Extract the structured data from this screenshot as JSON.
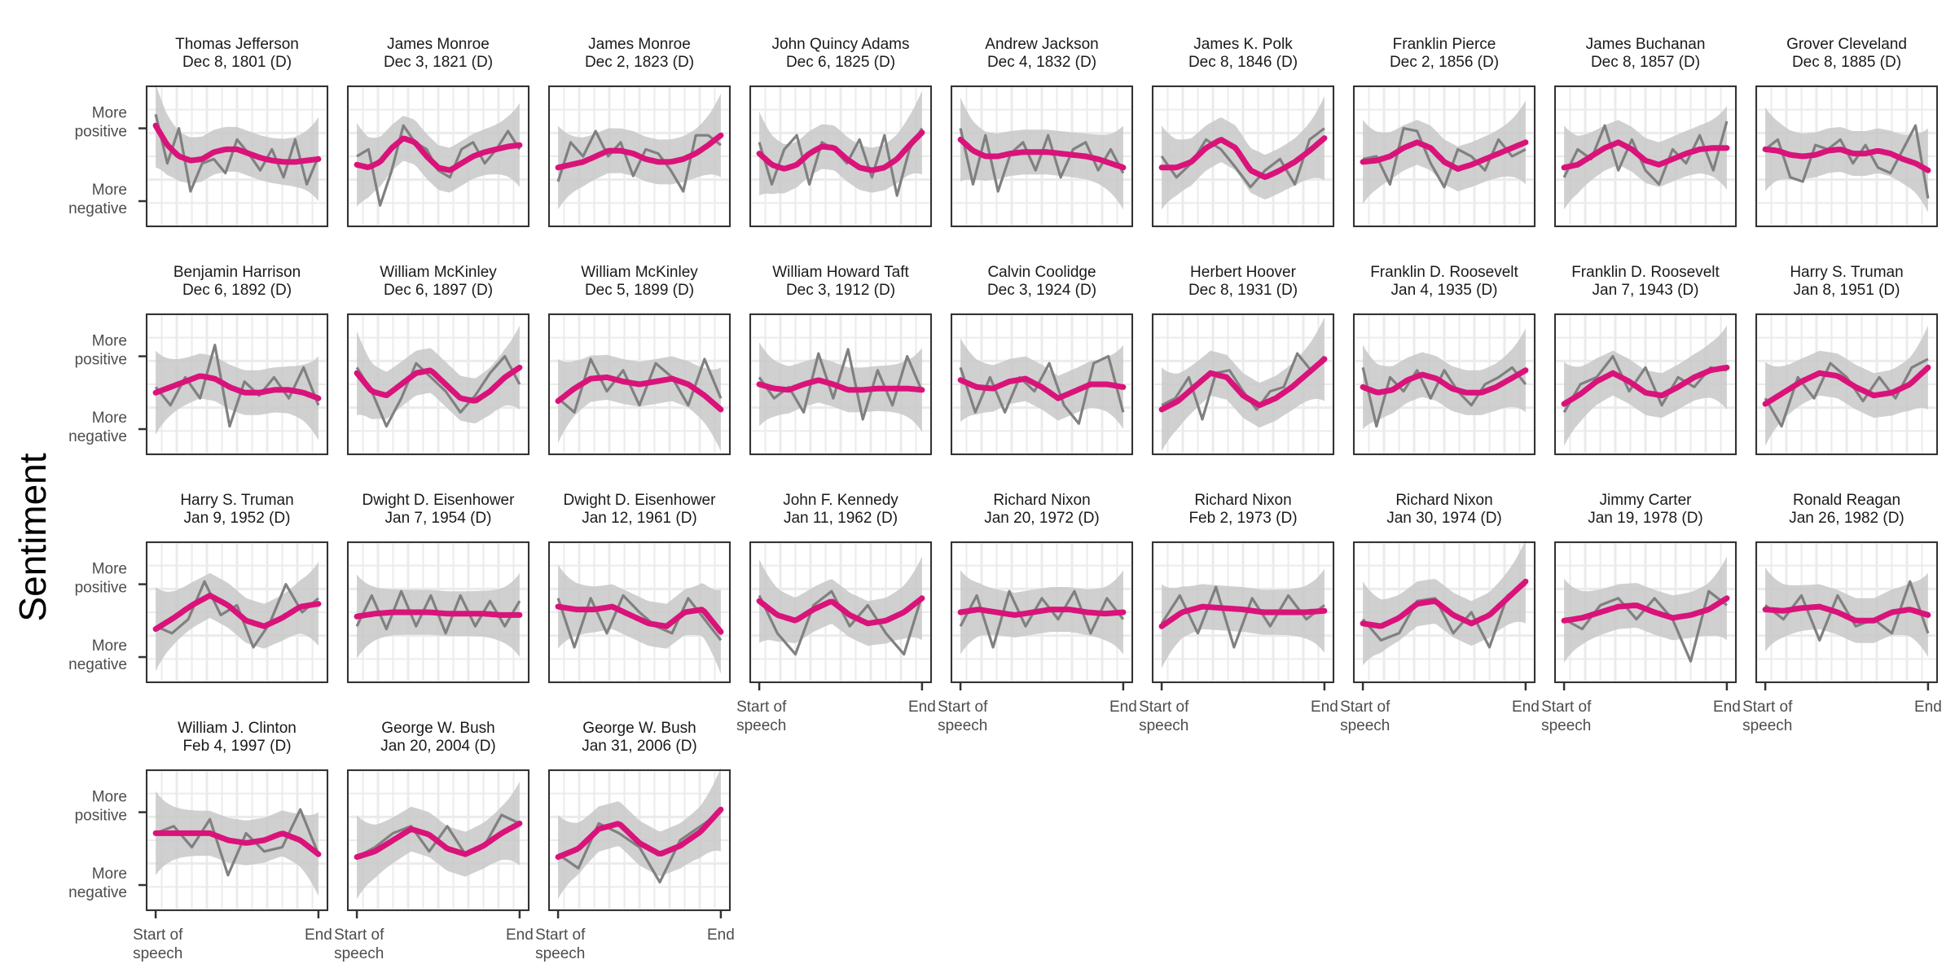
{
  "chart_data": {
    "type": "line",
    "ylabel": "Sentiment",
    "y_tick_labels": {
      "top": [
        "More",
        "positive"
      ],
      "bottom": [
        "More",
        "negative"
      ]
    },
    "x_tick_labels": {
      "start": [
        "Start of",
        "speech"
      ],
      "end": "End"
    },
    "y_range": [
      0,
      1
    ],
    "x_range": [
      0,
      1
    ],
    "grid": true,
    "legend": "none",
    "colors": {
      "raw": "#808080",
      "smooth": "#d9137a",
      "ribbon": "#c8c8c8",
      "panel_border": "#333333",
      "grid": "#ebebeb"
    },
    "series_names": [
      "raw sentiment",
      "smoothed sentiment"
    ],
    "panels": [
      {
        "title": "Thomas Jefferson",
        "date": "Dec  8, 1801 (D)",
        "smooth": [
          0.72,
          0.58,
          0.5,
          0.47,
          0.48,
          0.53,
          0.55,
          0.55,
          0.52,
          0.49,
          0.47,
          0.46,
          0.46,
          0.47,
          0.48
        ],
        "raw": [
          0.8,
          0.45,
          0.7,
          0.25,
          0.45,
          0.48,
          0.38,
          0.62,
          0.52,
          0.4,
          0.55,
          0.35,
          0.62,
          0.3,
          0.5
        ]
      },
      {
        "title": "James Monroe",
        "date": "Dec  3, 1821 (D)",
        "smooth": [
          0.44,
          0.42,
          0.46,
          0.56,
          0.63,
          0.6,
          0.5,
          0.42,
          0.4,
          0.45,
          0.5,
          0.53,
          0.55,
          0.57,
          0.58
        ],
        "raw": [
          0.5,
          0.55,
          0.15,
          0.4,
          0.72,
          0.6,
          0.55,
          0.4,
          0.35,
          0.55,
          0.6,
          0.45,
          0.55,
          0.68,
          0.55
        ]
      },
      {
        "title": "James Monroe",
        "date": "Dec  2, 1823 (D)",
        "smooth": [
          0.42,
          0.44,
          0.46,
          0.5,
          0.54,
          0.54,
          0.52,
          0.48,
          0.46,
          0.46,
          0.48,
          0.52,
          0.58,
          0.65
        ],
        "raw": [
          0.32,
          0.6,
          0.5,
          0.68,
          0.5,
          0.6,
          0.36,
          0.55,
          0.52,
          0.4,
          0.25,
          0.65,
          0.65,
          0.58
        ]
      },
      {
        "title": "John Quincy Adams",
        "date": "Dec  6, 1825 (D)",
        "smooth": [
          0.52,
          0.44,
          0.41,
          0.44,
          0.52,
          0.57,
          0.56,
          0.48,
          0.42,
          0.4,
          0.42,
          0.48,
          0.58,
          0.67
        ],
        "raw": [
          0.6,
          0.3,
          0.55,
          0.65,
          0.3,
          0.6,
          0.55,
          0.45,
          0.62,
          0.35,
          0.65,
          0.22,
          0.55,
          0.7
        ]
      },
      {
        "title": "Andrew Jackson",
        "date": "Dec  4, 1832 (D)",
        "smooth": [
          0.62,
          0.54,
          0.5,
          0.5,
          0.52,
          0.53,
          0.53,
          0.53,
          0.52,
          0.51,
          0.5,
          0.48,
          0.45,
          0.42
        ],
        "raw": [
          0.7,
          0.3,
          0.65,
          0.25,
          0.52,
          0.6,
          0.4,
          0.65,
          0.35,
          0.55,
          0.6,
          0.4,
          0.55,
          0.38
        ]
      },
      {
        "title": "James K. Polk",
        "date": "Dec  8, 1846 (D)",
        "smooth": [
          0.42,
          0.42,
          0.46,
          0.56,
          0.62,
          0.56,
          0.4,
          0.35,
          0.4,
          0.46,
          0.54,
          0.63
        ],
        "raw": [
          0.5,
          0.35,
          0.45,
          0.62,
          0.55,
          0.42,
          0.28,
          0.4,
          0.48,
          0.3,
          0.62,
          0.7
        ]
      },
      {
        "title": "Franklin Pierce",
        "date": "Dec  2, 1856 (D)",
        "smooth": [
          0.46,
          0.47,
          0.5,
          0.56,
          0.6,
          0.56,
          0.46,
          0.41,
          0.44,
          0.48,
          0.52,
          0.56,
          0.6
        ],
        "raw": [
          0.48,
          0.5,
          0.3,
          0.7,
          0.68,
          0.45,
          0.28,
          0.55,
          0.5,
          0.4,
          0.62,
          0.5,
          0.55
        ]
      },
      {
        "title": "James Buchanan",
        "date": "Dec  8, 1857 (D)",
        "smooth": [
          0.42,
          0.44,
          0.5,
          0.56,
          0.6,
          0.55,
          0.47,
          0.44,
          0.48,
          0.52,
          0.55,
          0.56,
          0.56
        ],
        "raw": [
          0.35,
          0.55,
          0.48,
          0.72,
          0.4,
          0.62,
          0.4,
          0.3,
          0.55,
          0.45,
          0.65,
          0.4,
          0.75
        ]
      },
      {
        "title": "Grover Cleveland",
        "date": "Dec  8, 1885 (D)",
        "smooth": [
          0.55,
          0.54,
          0.51,
          0.5,
          0.51,
          0.54,
          0.55,
          0.52,
          0.52,
          0.54,
          0.52,
          0.48,
          0.45,
          0.4
        ],
        "raw": [
          0.55,
          0.62,
          0.35,
          0.32,
          0.58,
          0.55,
          0.62,
          0.45,
          0.58,
          0.42,
          0.38,
          0.55,
          0.72,
          0.2
        ]
      },
      {
        "title": "Benjamin Harrison",
        "date": "Dec  6, 1892 (D)",
        "smooth": [
          0.44,
          0.48,
          0.52,
          0.56,
          0.54,
          0.48,
          0.44,
          0.44,
          0.46,
          0.46,
          0.44,
          0.4
        ],
        "raw": [
          0.48,
          0.35,
          0.55,
          0.4,
          0.78,
          0.2,
          0.52,
          0.42,
          0.55,
          0.4,
          0.62,
          0.35
        ]
      },
      {
        "title": "William McKinley",
        "date": "Dec  6, 1897 (D)",
        "smooth": [
          0.58,
          0.45,
          0.42,
          0.5,
          0.58,
          0.6,
          0.5,
          0.4,
          0.38,
          0.45,
          0.55,
          0.62
        ],
        "raw": [
          0.62,
          0.45,
          0.2,
          0.4,
          0.65,
          0.55,
          0.45,
          0.3,
          0.42,
          0.58,
          0.7,
          0.5
        ]
      },
      {
        "title": "William McKinley",
        "date": "Dec  5, 1899 (D)",
        "smooth": [
          0.38,
          0.47,
          0.54,
          0.55,
          0.52,
          0.5,
          0.52,
          0.54,
          0.5,
          0.42,
          0.32
        ],
        "raw": [
          0.4,
          0.3,
          0.68,
          0.45,
          0.6,
          0.35,
          0.65,
          0.55,
          0.35,
          0.68,
          0.4
        ]
      },
      {
        "title": "William Howard Taft",
        "date": "Dec  3, 1912 (D)",
        "smooth": [
          0.5,
          0.47,
          0.46,
          0.5,
          0.53,
          0.5,
          0.46,
          0.46,
          0.47,
          0.47,
          0.47,
          0.46
        ],
        "raw": [
          0.55,
          0.4,
          0.48,
          0.3,
          0.72,
          0.4,
          0.75,
          0.25,
          0.6,
          0.35,
          0.7,
          0.45
        ]
      },
      {
        "title": "Calvin Coolidge",
        "date": "Dec  3, 1924 (D)",
        "smooth": [
          0.53,
          0.48,
          0.47,
          0.52,
          0.54,
          0.48,
          0.4,
          0.45,
          0.5,
          0.5,
          0.48
        ],
        "raw": [
          0.62,
          0.3,
          0.55,
          0.3,
          0.55,
          0.45,
          0.65,
          0.35,
          0.22,
          0.65,
          0.7,
          0.3
        ]
      },
      {
        "title": "Herbert Hoover",
        "date": "Dec  8, 1931 (D)",
        "smooth": [
          0.32,
          0.38,
          0.48,
          0.58,
          0.55,
          0.42,
          0.35,
          0.4,
          0.48,
          0.58,
          0.68
        ],
        "raw": [
          0.35,
          0.4,
          0.55,
          0.25,
          0.58,
          0.6,
          0.45,
          0.32,
          0.45,
          0.48,
          0.72,
          0.6,
          0.7
        ]
      },
      {
        "title": "Franklin D. Roosevelt",
        "date": "Jan  4, 1935 (D)",
        "smooth": [
          0.48,
          0.44,
          0.46,
          0.53,
          0.57,
          0.54,
          0.47,
          0.44,
          0.44,
          0.48,
          0.54,
          0.6
        ],
        "raw": [
          0.62,
          0.2,
          0.55,
          0.45,
          0.6,
          0.4,
          0.6,
          0.45,
          0.35,
          0.5,
          0.55,
          0.62,
          0.5
        ]
      },
      {
        "title": "Franklin D. Roosevelt",
        "date": "Jan  7, 1943 (D)",
        "smooth": [
          0.36,
          0.43,
          0.52,
          0.58,
          0.52,
          0.44,
          0.42,
          0.48,
          0.55,
          0.6,
          0.62
        ],
        "raw": [
          0.3,
          0.5,
          0.55,
          0.7,
          0.45,
          0.62,
          0.35,
          0.55,
          0.48,
          0.62,
          0.6
        ]
      },
      {
        "title": "Harry S. Truman",
        "date": "Jan  8, 1951 (D)",
        "smooth": [
          0.36,
          0.44,
          0.52,
          0.58,
          0.56,
          0.48,
          0.42,
          0.44,
          0.5,
          0.62
        ],
        "raw": [
          0.4,
          0.2,
          0.55,
          0.4,
          0.65,
          0.55,
          0.38,
          0.55,
          0.4,
          0.62,
          0.68
        ]
      },
      {
        "title": "Harry S. Truman",
        "date": "Jan  9, 1952 (D)",
        "smooth": [
          0.38,
          0.46,
          0.55,
          0.62,
          0.55,
          0.44,
          0.4,
          0.46,
          0.54,
          0.56
        ],
        "raw": [
          0.4,
          0.35,
          0.45,
          0.72,
          0.48,
          0.55,
          0.25,
          0.42,
          0.7,
          0.5,
          0.6
        ]
      },
      {
        "title": "Dwight D. Eisenhower",
        "date": "Jan  7, 1954 (D)",
        "smooth": [
          0.47,
          0.49,
          0.5,
          0.5,
          0.5,
          0.49,
          0.49,
          0.49,
          0.48,
          0.48
        ],
        "raw": [
          0.4,
          0.62,
          0.38,
          0.65,
          0.4,
          0.62,
          0.35,
          0.62,
          0.4,
          0.58,
          0.4,
          0.58
        ]
      },
      {
        "title": "Dwight D. Eisenhower",
        "date": "Jan 12, 1961 (D)",
        "smooth": [
          0.54,
          0.52,
          0.52,
          0.54,
          0.48,
          0.42,
          0.4,
          0.5,
          0.52,
          0.36
        ],
        "raw": [
          0.6,
          0.25,
          0.6,
          0.35,
          0.62,
          0.5,
          0.4,
          0.35,
          0.6,
          0.45,
          0.3
        ]
      },
      {
        "title": "John F. Kennedy",
        "date": "Jan 11, 1962 (D)",
        "smooth": [
          0.58,
          0.48,
          0.44,
          0.52,
          0.58,
          0.48,
          0.42,
          0.44,
          0.5,
          0.6
        ],
        "raw": [
          0.62,
          0.35,
          0.2,
          0.55,
          0.65,
          0.4,
          0.55,
          0.35,
          0.2,
          0.62
        ]
      },
      {
        "title": "Richard Nixon",
        "date": "Jan 20, 1972 (D)",
        "smooth": [
          0.5,
          0.52,
          0.5,
          0.48,
          0.5,
          0.52,
          0.52,
          0.5,
          0.49,
          0.5
        ],
        "raw": [
          0.4,
          0.62,
          0.25,
          0.65,
          0.4,
          0.6,
          0.45,
          0.65,
          0.35,
          0.6,
          0.45
        ]
      },
      {
        "title": "Richard Nixon",
        "date": "Feb  2, 1973 (D)",
        "smooth": [
          0.4,
          0.5,
          0.54,
          0.53,
          0.52,
          0.5,
          0.5,
          0.5,
          0.51
        ],
        "raw": [
          0.42,
          0.62,
          0.35,
          0.68,
          0.25,
          0.6,
          0.4,
          0.62,
          0.45,
          0.55
        ]
      },
      {
        "title": "Richard Nixon",
        "date": "Jan 30, 1974 (D)",
        "smooth": [
          0.42,
          0.4,
          0.46,
          0.56,
          0.58,
          0.48,
          0.42,
          0.48,
          0.6,
          0.72
        ],
        "raw": [
          0.45,
          0.3,
          0.35,
          0.58,
          0.6,
          0.35,
          0.5,
          0.25,
          0.62,
          0.7
        ]
      },
      {
        "title": "Jimmy Carter",
        "date": "Jan 19, 1978 (D)",
        "smooth": [
          0.44,
          0.46,
          0.5,
          0.54,
          0.55,
          0.5,
          0.46,
          0.48,
          0.52,
          0.6
        ],
        "raw": [
          0.45,
          0.38,
          0.55,
          0.6,
          0.45,
          0.6,
          0.45,
          0.15,
          0.65,
          0.55
        ]
      },
      {
        "title": "Ronald Reagan",
        "date": "Jan 26, 1982 (D)",
        "smooth": [
          0.52,
          0.51,
          0.53,
          0.54,
          0.5,
          0.44,
          0.44,
          0.5,
          0.52,
          0.48
        ],
        "raw": [
          0.55,
          0.45,
          0.62,
          0.3,
          0.62,
          0.4,
          0.45,
          0.35,
          0.72,
          0.35
        ]
      },
      {
        "title": "William J. Clinton",
        "date": "Feb  4, 1997 (D)",
        "smooth": [
          0.55,
          0.55,
          0.55,
          0.55,
          0.5,
          0.48,
          0.5,
          0.55,
          0.5,
          0.4
        ],
        "raw": [
          0.55,
          0.6,
          0.45,
          0.65,
          0.25,
          0.55,
          0.42,
          0.45,
          0.72,
          0.4
        ]
      },
      {
        "title": "George W. Bush",
        "date": "Jan 20, 2004 (D)",
        "smooth": [
          0.38,
          0.42,
          0.5,
          0.58,
          0.54,
          0.44,
          0.4,
          0.46,
          0.55,
          0.62
        ],
        "raw": [
          0.38,
          0.45,
          0.55,
          0.6,
          0.42,
          0.6,
          0.4,
          0.45,
          0.68,
          0.62
        ]
      },
      {
        "title": "George W. Bush",
        "date": "Jan 31, 2006 (D)",
        "smooth": [
          0.38,
          0.44,
          0.58,
          0.62,
          0.48,
          0.4,
          0.46,
          0.56,
          0.72
        ],
        "raw": [
          0.4,
          0.3,
          0.62,
          0.55,
          0.45,
          0.2,
          0.5,
          0.6,
          0.7
        ]
      }
    ]
  }
}
